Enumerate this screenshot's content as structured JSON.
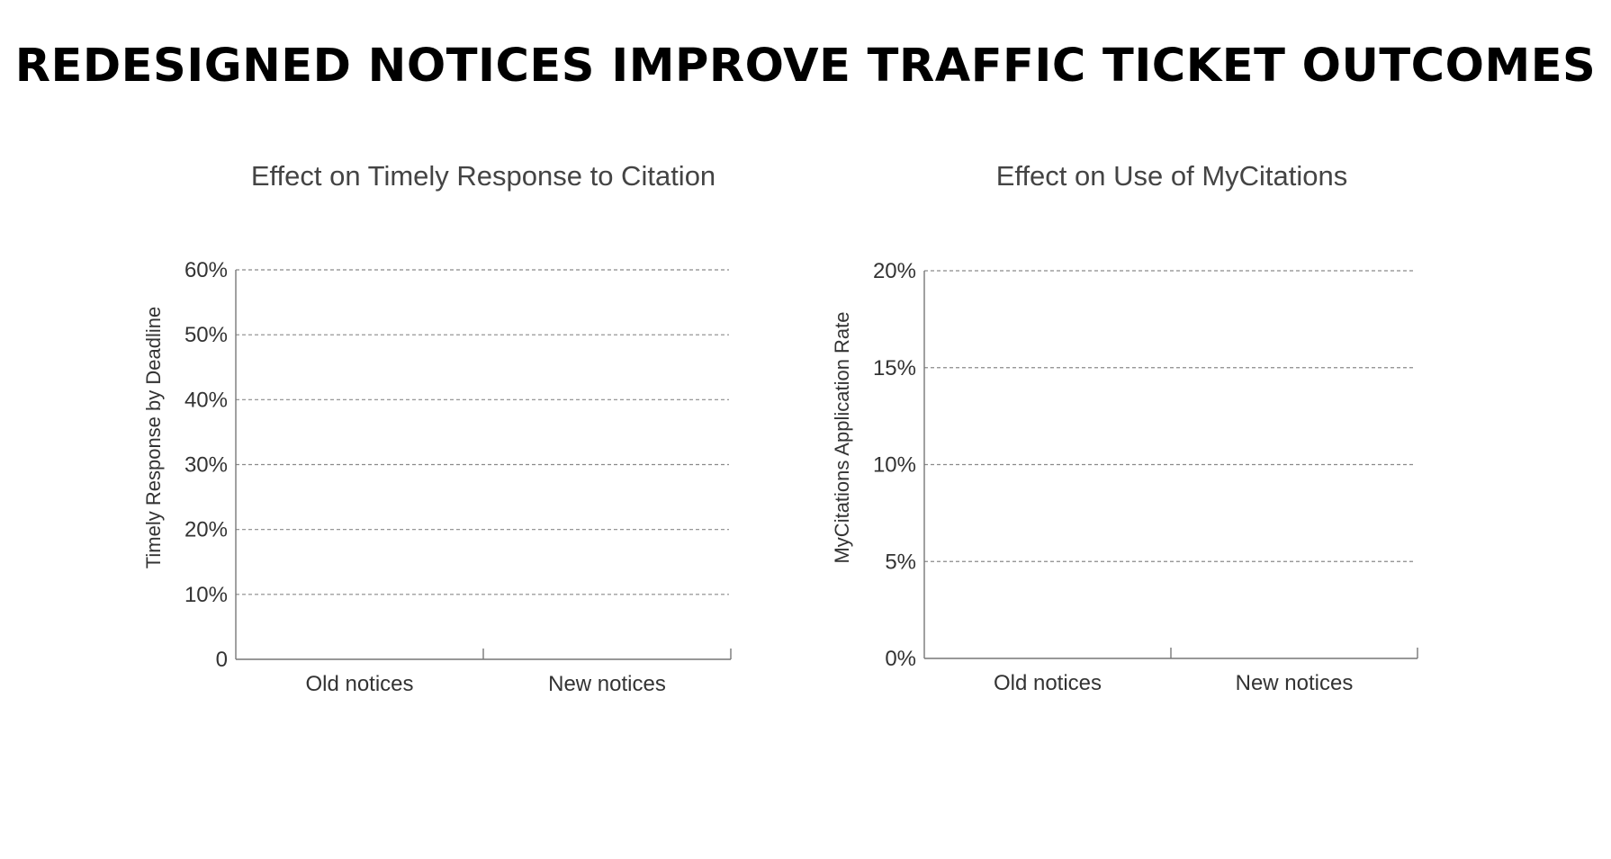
{
  "page": {
    "title": "REDESIGNED NOTICES IMPROVE TRAFFIC TICKET OUTCOMES"
  },
  "chart_data": [
    {
      "type": "bar",
      "title": "Effect on Timely Response to Citation",
      "xlabel": "",
      "ylabel": "Timely Response by Deadline",
      "categories": [
        "Old notices",
        "New notices"
      ],
      "values": [
        null,
        null
      ],
      "ylim": [
        0,
        60
      ],
      "yticks": [
        0,
        10,
        20,
        30,
        40,
        50,
        60
      ],
      "ytick_labels": [
        "0",
        "10%",
        "20%",
        "30%",
        "40%",
        "50%",
        "60%"
      ],
      "grid": true,
      "legend": "none"
    },
    {
      "type": "bar",
      "title": "Effect on Use of MyCitations",
      "xlabel": "",
      "ylabel": "MyCitations Application Rate",
      "categories": [
        "Old notices",
        "New notices"
      ],
      "values": [
        null,
        null
      ],
      "ylim": [
        0,
        20
      ],
      "yticks": [
        0,
        5,
        10,
        15,
        20
      ],
      "ytick_labels": [
        "0%",
        "5%",
        "10%",
        "15%",
        "20%"
      ],
      "grid": true,
      "legend": "none"
    }
  ],
  "colors": {
    "axis": "#777777",
    "grid": "#8a8a8a",
    "text": "#333333",
    "title": "#000000"
  }
}
